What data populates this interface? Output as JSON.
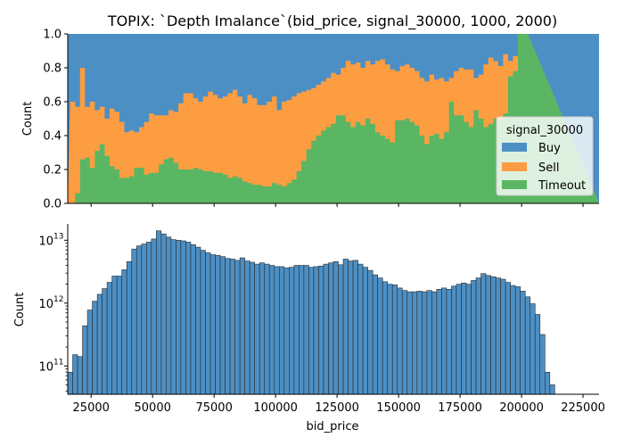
{
  "chart_data": [
    {
      "type": "area",
      "stacking": "fill",
      "title": "TOPIX: `Depth Imalance`(bid_price, signal_30000, 1000, 2000)",
      "xlabel": "",
      "ylabel": "Count",
      "xlim": [
        15500,
        231500
      ],
      "ylim": [
        0,
        1
      ],
      "yticks": [
        0.0,
        0.2,
        0.4,
        0.6,
        0.8,
        1.0
      ],
      "ytick_labels": [
        "0.0",
        "0.2",
        "0.4",
        "0.6",
        "0.8",
        "1.0"
      ],
      "bin_start": 17500,
      "bin_width": 2000,
      "legend": {
        "title": "signal_30000",
        "placement": "lower-right"
      },
      "series": [
        {
          "name": "Buy",
          "color": "#4c8fc4"
        },
        {
          "name": "Sell",
          "color": "#fd9d42"
        },
        {
          "name": "Timeout",
          "color": "#5ab662"
        }
      ],
      "timeout_fraction": [
        0.0,
        0.06,
        0.26,
        0.27,
        0.21,
        0.31,
        0.35,
        0.28,
        0.22,
        0.2,
        0.15,
        0.15,
        0.16,
        0.21,
        0.21,
        0.17,
        0.18,
        0.18,
        0.23,
        0.26,
        0.27,
        0.24,
        0.2,
        0.2,
        0.2,
        0.21,
        0.2,
        0.19,
        0.19,
        0.18,
        0.18,
        0.17,
        0.15,
        0.16,
        0.15,
        0.13,
        0.12,
        0.11,
        0.11,
        0.1,
        0.1,
        0.12,
        0.11,
        0.1,
        0.12,
        0.14,
        0.19,
        0.25,
        0.32,
        0.37,
        0.4,
        0.43,
        0.45,
        0.47,
        0.52,
        0.52,
        0.48,
        0.45,
        0.48,
        0.46,
        0.5,
        0.47,
        0.42,
        0.4,
        0.38,
        0.36,
        0.49,
        0.49,
        0.5,
        0.48,
        0.46,
        0.4,
        0.35,
        0.4,
        0.41,
        0.38,
        0.42,
        0.6,
        0.52,
        0.52,
        0.48,
        0.45,
        0.55,
        0.5,
        0.45,
        0.47,
        0.5,
        0.49,
        0.53,
        0.75,
        0.78,
        1.0,
        1.0
      ],
      "timeout_plus_sell_fraction": [
        0.6,
        0.57,
        0.8,
        0.57,
        0.6,
        0.55,
        0.57,
        0.5,
        0.56,
        0.54,
        0.48,
        0.42,
        0.43,
        0.42,
        0.45,
        0.48,
        0.53,
        0.52,
        0.52,
        0.52,
        0.55,
        0.54,
        0.59,
        0.65,
        0.65,
        0.62,
        0.6,
        0.63,
        0.66,
        0.64,
        0.62,
        0.63,
        0.65,
        0.67,
        0.63,
        0.59,
        0.64,
        0.62,
        0.58,
        0.58,
        0.6,
        0.63,
        0.55,
        0.6,
        0.61,
        0.63,
        0.65,
        0.66,
        0.67,
        0.68,
        0.7,
        0.72,
        0.74,
        0.77,
        0.76,
        0.8,
        0.84,
        0.82,
        0.83,
        0.8,
        0.84,
        0.82,
        0.84,
        0.85,
        0.82,
        0.79,
        0.78,
        0.81,
        0.82,
        0.8,
        0.78,
        0.74,
        0.72,
        0.76,
        0.73,
        0.74,
        0.72,
        0.74,
        0.78,
        0.8,
        0.79,
        0.79,
        0.74,
        0.76,
        0.82,
        0.86,
        0.84,
        0.81,
        0.88,
        0.84,
        0.87,
        1.0,
        1.0
      ]
    },
    {
      "type": "bar",
      "xlabel": "bid_price",
      "ylabel": "Count",
      "yscale": "log",
      "xlim": [
        15500,
        231500
      ],
      "ylim_log10": [
        10.55,
        13.26
      ],
      "xticks": [
        25000,
        50000,
        75000,
        100000,
        125000,
        150000,
        175000,
        200000,
        225000
      ],
      "xtick_labels": [
        "25000",
        "50000",
        "75000",
        "100000",
        "125000",
        "150000",
        "175000",
        "200000",
        "225000"
      ],
      "yticks_log10": [
        11,
        12,
        13
      ],
      "ytick_labels": [
        "10",
        "10",
        "10"
      ],
      "ytick_exponents": [
        "11",
        "12",
        "13"
      ],
      "bin_start": 15500,
      "bin_width": 2000,
      "bar_color": "#4c8fc4",
      "log10_counts": [
        10.9,
        11.18,
        11.15,
        11.64,
        11.89,
        12.03,
        12.14,
        12.23,
        12.33,
        12.43,
        12.43,
        12.53,
        12.66,
        12.86,
        12.91,
        12.94,
        12.97,
        13.02,
        13.15,
        13.1,
        13.05,
        13.01,
        13.0,
        12.99,
        12.97,
        12.93,
        12.89,
        12.84,
        12.8,
        12.77,
        12.76,
        12.74,
        12.71,
        12.7,
        12.68,
        12.72,
        12.67,
        12.65,
        12.62,
        12.64,
        12.62,
        12.6,
        12.58,
        12.58,
        12.56,
        12.57,
        12.6,
        12.6,
        12.6,
        12.57,
        12.58,
        12.59,
        12.62,
        12.64,
        12.66,
        12.61,
        12.7,
        12.67,
        12.68,
        12.62,
        12.57,
        12.52,
        12.45,
        12.4,
        12.34,
        12.3,
        12.29,
        12.24,
        12.2,
        12.18,
        12.18,
        12.19,
        12.18,
        12.2,
        12.18,
        12.22,
        12.24,
        12.22,
        12.27,
        12.3,
        12.32,
        12.3,
        12.36,
        12.4,
        12.47,
        12.44,
        12.42,
        12.4,
        12.38,
        12.33,
        12.28,
        12.26,
        12.19,
        12.1,
        11.99,
        11.82,
        11.5,
        10.9,
        10.7
      ]
    }
  ]
}
